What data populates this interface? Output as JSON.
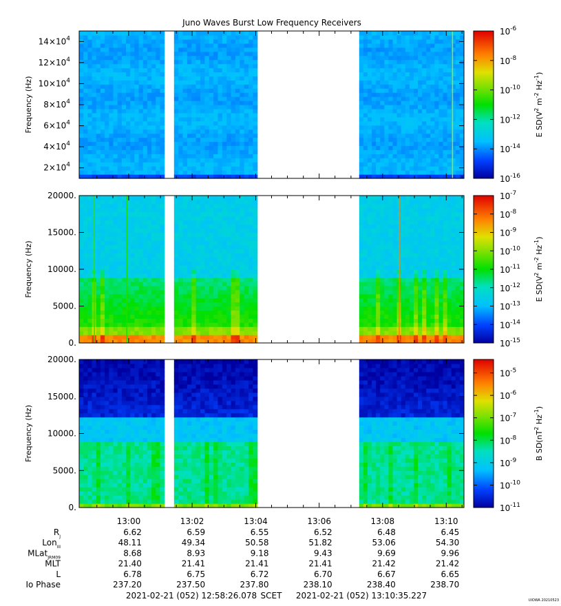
{
  "figure": {
    "title": "Juno Waves Burst Low Frequency Receivers",
    "stamp": "UIOWA 20210523"
  },
  "chart_data": [
    {
      "type": "heatmap",
      "name": "panel-1-electric-spectrogram",
      "ylabel": "Frequency (Hz)",
      "ylim": [
        10000,
        150000
      ],
      "y_ticks": [
        {
          "value": 20000,
          "mant": "2×10",
          "exp": "4"
        },
        {
          "value": 40000,
          "mant": "4×10",
          "exp": "4"
        },
        {
          "value": 60000,
          "mant": "6×10",
          "exp": "4"
        },
        {
          "value": 80000,
          "mant": "8×10",
          "exp": "4"
        },
        {
          "value": 100000,
          "mant": "10×10",
          "exp": "4"
        },
        {
          "value": 120000,
          "mant": "12×10",
          "exp": "4"
        },
        {
          "value": 140000,
          "mant": "14×10",
          "exp": "4"
        }
      ],
      "colorbar": {
        "label_main": "E SD(V",
        "label_sup1": "2",
        "label_mid": " m",
        "label_sup2": "-2",
        "label_mid2": " Hz",
        "label_sup3": "-1",
        "label_end": ")",
        "log_min": -16,
        "log_max": -6,
        "ticks": [
          {
            "value": -16,
            "mant": "10",
            "exp": "-16"
          },
          {
            "value": -14,
            "mant": "10",
            "exp": "-14"
          },
          {
            "value": -12,
            "mant": "10",
            "exp": "-12"
          },
          {
            "value": -10,
            "mant": "10",
            "exp": "-10"
          },
          {
            "value": -8,
            "mant": "10",
            "exp": "-8"
          },
          {
            "value": -6,
            "mant": "10",
            "exp": "-6"
          }
        ]
      },
      "background_log": -13.7,
      "spikes": [
        {
          "time": 13.17,
          "log": -9.2
        }
      ]
    },
    {
      "type": "heatmap",
      "name": "panel-2-electric-spectrogram",
      "ylabel": "Frequency (Hz)",
      "ylim": [
        0,
        20000
      ],
      "y_ticks": [
        {
          "value": 0,
          "mant": "0.",
          "exp": ""
        },
        {
          "value": 5000,
          "mant": "5000.",
          "exp": ""
        },
        {
          "value": 10000,
          "mant": "10000.",
          "exp": ""
        },
        {
          "value": 15000,
          "mant": "15000.",
          "exp": ""
        },
        {
          "value": 20000,
          "mant": "20000.",
          "exp": ""
        }
      ],
      "colorbar": {
        "label_main": "E SD(V",
        "label_sup1": "2",
        "label_mid": " m",
        "label_sup2": "-2",
        "label_mid2": " Hz",
        "label_sup3": "-1",
        "label_end": ")",
        "log_min": -15,
        "log_max": -7,
        "ticks": [
          {
            "value": -15,
            "mant": "10",
            "exp": "-15"
          },
          {
            "value": -14,
            "mant": "10",
            "exp": "-14"
          },
          {
            "value": -13,
            "mant": "10",
            "exp": "-13"
          },
          {
            "value": -12,
            "mant": "10",
            "exp": "-12"
          },
          {
            "value": -11,
            "mant": "10",
            "exp": "-11"
          },
          {
            "value": -10,
            "mant": "10",
            "exp": "-10"
          },
          {
            "value": -9,
            "mant": "10",
            "exp": "-9"
          },
          {
            "value": -8,
            "mant": "10",
            "exp": "-8"
          },
          {
            "value": -7,
            "mant": "10",
            "exp": "-7"
          }
        ]
      },
      "background_log": -12.6,
      "spikes": [
        {
          "time": 13.142,
          "log": -8.3
        },
        {
          "time": 12.982,
          "log": -10.6
        },
        {
          "time": 12.999,
          "log": -10.8
        }
      ]
    },
    {
      "type": "heatmap",
      "name": "panel-3-magnetic-spectrogram",
      "ylabel": "Frequency (Hz)",
      "ylim": [
        0,
        20000
      ],
      "y_ticks": [
        {
          "value": 0,
          "mant": "0.",
          "exp": ""
        },
        {
          "value": 5000,
          "mant": "5000.",
          "exp": ""
        },
        {
          "value": 10000,
          "mant": "10000.",
          "exp": ""
        },
        {
          "value": 15000,
          "mant": "15000.",
          "exp": ""
        },
        {
          "value": 20000,
          "mant": "20000.",
          "exp": ""
        }
      ],
      "colorbar": {
        "label_main": "B SD(nT",
        "label_sup1": "2",
        "label_mid": " Hz",
        "label_sup2": "-1",
        "label_mid2": "",
        "label_sup3": "",
        "label_end": ")",
        "log_min": -11,
        "log_max": -4.4,
        "ticks": [
          {
            "value": -11,
            "mant": "10",
            "exp": "-11"
          },
          {
            "value": -10,
            "mant": "10",
            "exp": "-10"
          },
          {
            "value": -9,
            "mant": "10",
            "exp": "-9"
          },
          {
            "value": -8,
            "mant": "10",
            "exp": "-8"
          },
          {
            "value": -7,
            "mant": "10",
            "exp": "-7"
          },
          {
            "value": -6,
            "mant": "10",
            "exp": "-6"
          },
          {
            "value": -5,
            "mant": "10",
            "exp": "-5"
          }
        ]
      },
      "background_log": -9.9,
      "spikes": []
    }
  ],
  "time_axis": {
    "tmin": 12.974,
    "tmax": 13.176,
    "data_intervals": [
      [
        12.974,
        13.0187
      ],
      [
        13.0238,
        13.0675
      ],
      [
        13.121,
        13.176
      ]
    ],
    "tick_labels": [
      {
        "time": 13.0,
        "label": "13:00"
      },
      {
        "time": 13.0333,
        "label": "13:02"
      },
      {
        "time": 13.0667,
        "label": "13:04"
      },
      {
        "time": 13.1,
        "label": "13:06"
      },
      {
        "time": 13.1333,
        "label": "13:08"
      },
      {
        "time": 13.1667,
        "label": "13:10"
      }
    ],
    "minor_ticks": [
      12.9833,
      12.9917,
      13.0083,
      13.0167,
      13.025,
      13.0417,
      13.05,
      13.0583,
      13.075,
      13.0833,
      13.0917,
      13.1083,
      13.1167,
      13.125,
      13.1417,
      13.15,
      13.1583,
      13.175
    ]
  },
  "ephemeris": {
    "rows": [
      {
        "label": "R",
        "sub": "J",
        "values": [
          "6.62",
          "6.59",
          "6.55",
          "6.52",
          "6.48",
          "6.45"
        ]
      },
      {
        "label": "Lon",
        "sub": "III",
        "values": [
          "48.11",
          "49.34",
          "50.58",
          "51.82",
          "53.06",
          "54.30"
        ]
      },
      {
        "label": "MLat",
        "sub": "JRM09",
        "values": [
          "8.68",
          "8.93",
          "9.18",
          "9.43",
          "9.69",
          "9.96"
        ]
      },
      {
        "label": "MLT",
        "sub": "",
        "values": [
          "21.40",
          "21.41",
          "21.41",
          "21.41",
          "21.42",
          "21.42"
        ]
      },
      {
        "label": "L",
        "sub": "",
        "values": [
          "6.78",
          "6.75",
          "6.72",
          "6.70",
          "6.67",
          "6.65"
        ]
      },
      {
        "label": "Io Phase",
        "sub": "",
        "values": [
          "237.20",
          "237.50",
          "237.80",
          "238.10",
          "238.40",
          "238.70"
        ]
      }
    ]
  },
  "footer": {
    "start": "2021-02-21 (052) 12:58:26.078",
    "mid": "SCET",
    "end": "2021-02-21 (052) 13:10:35.227"
  }
}
